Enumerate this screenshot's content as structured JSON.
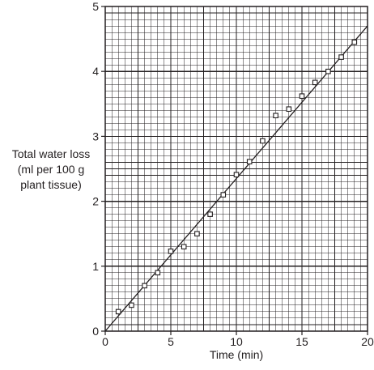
{
  "chart_data": {
    "type": "scatter",
    "xlabel": "Time (min)",
    "ylabel_lines": [
      "Total water loss",
      "(ml per 100 g",
      "plant tissue)"
    ],
    "xlim": [
      0,
      20
    ],
    "ylim": [
      0,
      5
    ],
    "x_ticks": [
      0,
      5,
      10,
      15,
      20
    ],
    "y_ticks": [
      0,
      1,
      2,
      3,
      4,
      5
    ],
    "grid": true,
    "grid_minor_x": 0.5,
    "grid_minor_y": 0.1,
    "series": [
      {
        "marker": "open-square",
        "points": [
          [
            1,
            0.3
          ],
          [
            2,
            0.4
          ],
          [
            3,
            0.7
          ],
          [
            4,
            0.9
          ],
          [
            5,
            1.23
          ],
          [
            6,
            1.3
          ],
          [
            7,
            1.5
          ],
          [
            8,
            1.8
          ],
          [
            9,
            2.1
          ],
          [
            10,
            2.41
          ],
          [
            11,
            2.61
          ],
          [
            12,
            2.93
          ],
          [
            13,
            3.32
          ],
          [
            14,
            3.42
          ],
          [
            15,
            3.62
          ],
          [
            16,
            3.83
          ],
          [
            17,
            4.0
          ],
          [
            18,
            4.22
          ],
          [
            19,
            4.45
          ]
        ]
      }
    ],
    "trendline": {
      "start": [
        0,
        0
      ],
      "end": [
        20,
        4.7
      ]
    },
    "colors": {
      "ink": "#231f20",
      "background": "#ffffff"
    }
  }
}
